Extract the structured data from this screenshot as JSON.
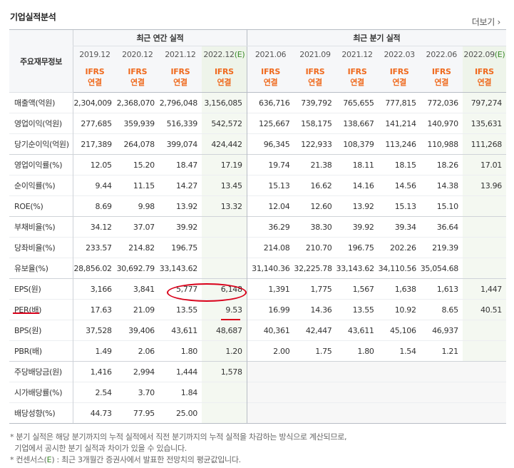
{
  "section_title": "기업실적분석",
  "more_link": "더보기",
  "header": {
    "row_label": "주요재무정보",
    "annual_group": "최근 연간 실적",
    "quarter_group": "최근 분기 실적",
    "annual_periods": [
      "2019.12",
      "2020.12",
      "2021.12",
      "2022.12"
    ],
    "quarter_periods": [
      "2021.06",
      "2021.09",
      "2021.12",
      "2022.03",
      "2022.06",
      "2022.09"
    ],
    "estimate_mark": "(E)",
    "ifrs_line1": "IFRS",
    "ifrs_line2": "연결"
  },
  "rows": [
    {
      "label": "매출액(억원)",
      "annual": [
        "2,304,009",
        "2,368,070",
        "2,796,048",
        "3,156,085"
      ],
      "quarter": [
        "636,716",
        "739,792",
        "765,655",
        "777,815",
        "772,036",
        "797,274"
      ]
    },
    {
      "label": "영업이익(억원)",
      "annual": [
        "277,685",
        "359,939",
        "516,339",
        "542,572"
      ],
      "quarter": [
        "125,667",
        "158,175",
        "138,667",
        "141,214",
        "140,970",
        "135,631"
      ]
    },
    {
      "label": "당기순이익(억원)",
      "annual": [
        "217,389",
        "264,078",
        "399,074",
        "424,442"
      ],
      "quarter": [
        "96,345",
        "122,933",
        "108,379",
        "113,246",
        "110,988",
        "111,268"
      ]
    },
    {
      "label": "영업이익률(%)",
      "annual": [
        "12.05",
        "15.20",
        "18.47",
        "17.19"
      ],
      "quarter": [
        "19.74",
        "21.38",
        "18.11",
        "18.15",
        "18.26",
        "17.01"
      ]
    },
    {
      "label": "순이익률(%)",
      "annual": [
        "9.44",
        "11.15",
        "14.27",
        "13.45"
      ],
      "quarter": [
        "15.13",
        "16.62",
        "14.16",
        "14.56",
        "14.38",
        "13.96"
      ]
    },
    {
      "label": "ROE(%)",
      "annual": [
        "8.69",
        "9.98",
        "13.92",
        "13.32"
      ],
      "quarter": [
        "12.04",
        "12.60",
        "13.92",
        "15.13",
        "15.10",
        ""
      ]
    },
    {
      "label": "부채비율(%)",
      "annual": [
        "34.12",
        "37.07",
        "39.92",
        ""
      ],
      "quarter": [
        "36.29",
        "38.30",
        "39.92",
        "39.34",
        "36.64",
        ""
      ]
    },
    {
      "label": "당좌비율(%)",
      "annual": [
        "233.57",
        "214.82",
        "196.75",
        ""
      ],
      "quarter": [
        "214.08",
        "210.70",
        "196.75",
        "202.26",
        "219.39",
        ""
      ]
    },
    {
      "label": "유보율(%)",
      "annual": [
        "28,856.02",
        "30,692.79",
        "33,143.62",
        ""
      ],
      "quarter": [
        "31,140.36",
        "32,225.78",
        "33,143.62",
        "34,110.56",
        "35,054.68",
        ""
      ]
    },
    {
      "label": "EPS(원)",
      "annual": [
        "3,166",
        "3,841",
        "5,777",
        "6,148"
      ],
      "quarter": [
        "1,391",
        "1,775",
        "1,567",
        "1,638",
        "1,613",
        "1,447"
      ]
    },
    {
      "label": "PER(배)",
      "annual": [
        "17.63",
        "21.09",
        "13.55",
        "9.53"
      ],
      "quarter": [
        "16.99",
        "14.36",
        "13.55",
        "10.92",
        "8.65",
        "40.51"
      ]
    },
    {
      "label": "BPS(원)",
      "annual": [
        "37,528",
        "39,406",
        "43,611",
        "48,687"
      ],
      "quarter": [
        "40,361",
        "42,447",
        "43,611",
        "45,106",
        "46,937",
        ""
      ]
    },
    {
      "label": "PBR(배)",
      "annual": [
        "1.49",
        "2.06",
        "1.80",
        "1.20"
      ],
      "quarter": [
        "2.00",
        "1.75",
        "1.80",
        "1.54",
        "1.21",
        ""
      ]
    },
    {
      "label": "주당배당금(원)",
      "annual": [
        "1,416",
        "2,994",
        "1,444",
        "1,578"
      ],
      "quarter": [
        "",
        "",
        "",
        "",
        "",
        ""
      ]
    },
    {
      "label": "시가배당률(%)",
      "annual": [
        "2.54",
        "3.70",
        "1.84",
        ""
      ],
      "quarter": [
        "",
        "",
        "",
        "",
        "",
        ""
      ]
    },
    {
      "label": "배당성향(%)",
      "annual": [
        "44.73",
        "77.95",
        "25.00",
        ""
      ],
      "quarter": [
        "",
        "",
        "",
        "",
        "",
        ""
      ]
    }
  ],
  "notes": {
    "line1": "* 분기 실적은 해당 분기까지의 누적 실적에서 직전 분기까지의 누적 실적을 차감하는 방식으로 계산되므로,",
    "line2": "  기업에서 공시한 분기 실적과 차이가 있을 수 있습니다.",
    "line3_prefix": "* 컨센서스(",
    "line3_mark": "E",
    "line3_suffix": ") : 최근 3개월간 증권사에서 발표한 전망치의 평균값입니다."
  },
  "annotation_color": "#d9001a"
}
